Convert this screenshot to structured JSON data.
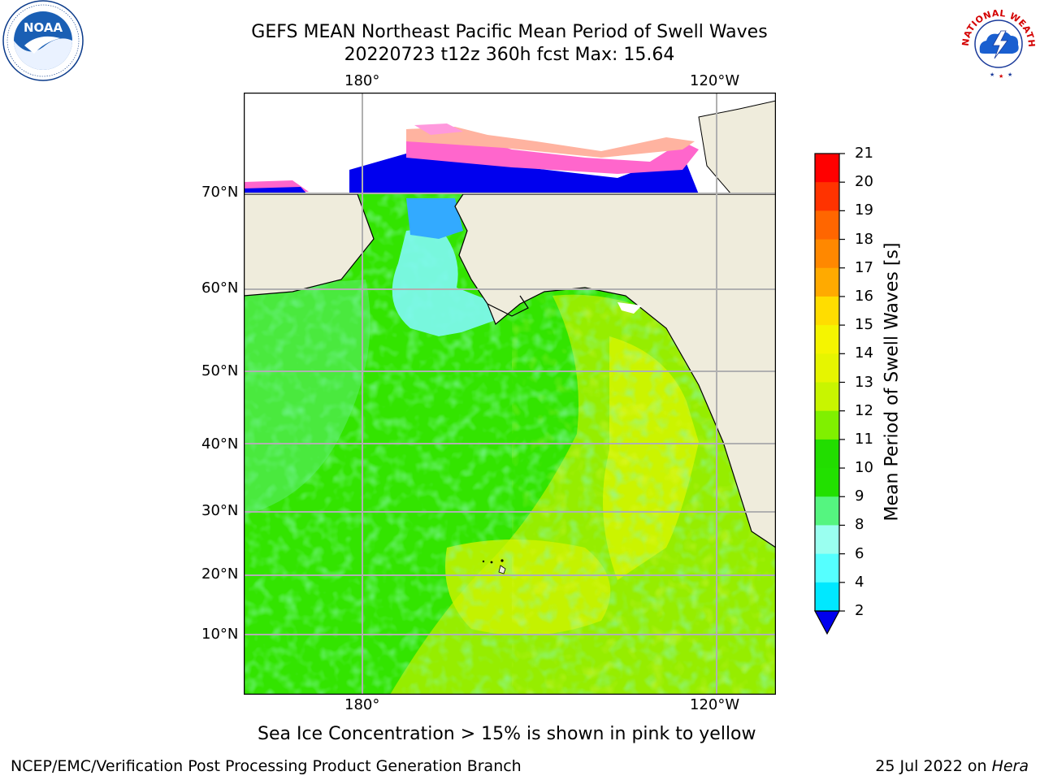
{
  "header": {
    "title_line1": "GEFS MEAN Northeast Pacific Mean Period of Swell Waves",
    "title_line2": "20220723 t12z 360h fcst   Max: 15.64"
  },
  "logos": {
    "noaa": {
      "text": "NOAA",
      "icon": "noaa-seagull-logo"
    },
    "nws": {
      "text": "NATIONAL WEATHER SERVICE",
      "icon": "nws-lightning-logo"
    }
  },
  "map": {
    "lon_labels": [
      "180°",
      "120°W"
    ],
    "lat_labels": [
      "70°N",
      "60°N",
      "50°N",
      "40°N",
      "30°N",
      "20°N",
      "10°N"
    ]
  },
  "colorbar": {
    "label": "Mean Period of Swell Waves [s]",
    "ticks": [
      "21",
      "20",
      "19",
      "18",
      "17",
      "16",
      "15",
      "14",
      "13",
      "12",
      "11",
      "10",
      "9",
      "8",
      "6",
      "4",
      "2"
    ],
    "colors": [
      "#ff0000",
      "#ff3300",
      "#ff6600",
      "#ff8800",
      "#ffaa00",
      "#ffdd00",
      "#f5f500",
      "#e6f500",
      "#c8f500",
      "#80f000",
      "#22dd00",
      "#22e000",
      "#55f580",
      "#9afff0",
      "#55ffff",
      "#00e8ff",
      "#0070ff"
    ],
    "extend_color": "#0000ee"
  },
  "notes": {
    "sea_ice": "Sea Ice Concentration > 15% is shown in pink to yellow"
  },
  "footer": {
    "left": "NCEP/EMC/Verification Post Processing Product Generation Branch",
    "right_date": "25 Jul 2022 on ",
    "right_host": "Hera"
  }
}
